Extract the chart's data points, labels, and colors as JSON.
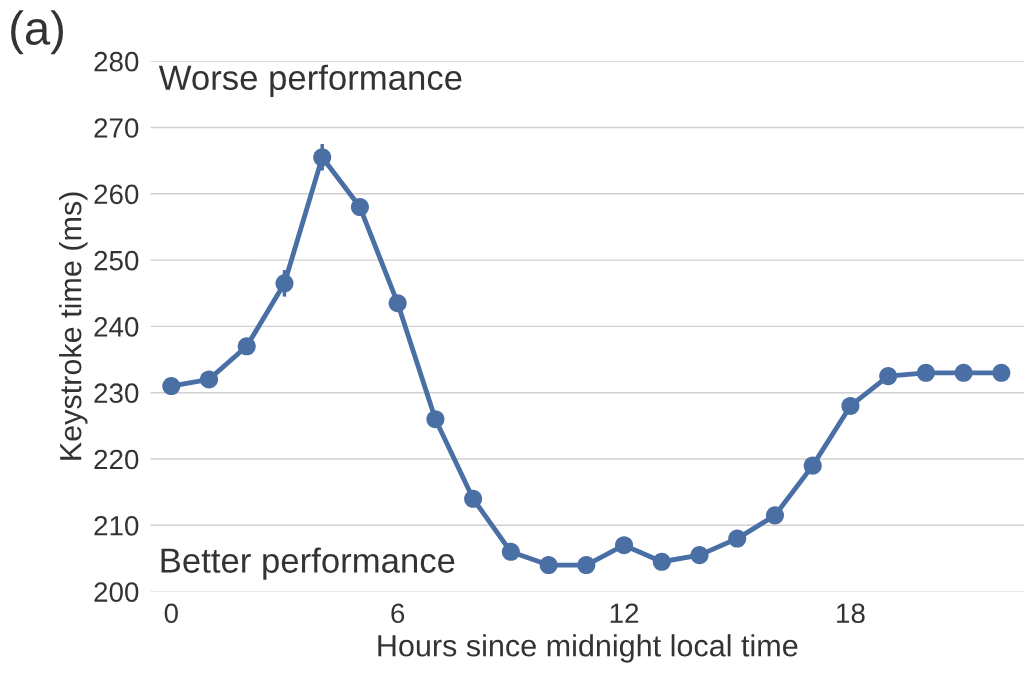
{
  "chart_data": {
    "type": "line",
    "xlabel": "Hours since midnight local time",
    "ylabel": "Keystroke time (ms)",
    "annotations": [
      "(a)",
      "Worse performance",
      "Better performance"
    ],
    "x": [
      0,
      1,
      2,
      3,
      4,
      5,
      6,
      7,
      8,
      9,
      10,
      11,
      12,
      13,
      14,
      15,
      16,
      17,
      18,
      19,
      20,
      21,
      22
    ],
    "series": [
      {
        "color": "#4a6fa5",
        "values": [
          231,
          232,
          237,
          246.5,
          265.5,
          258,
          243.5,
          226,
          214,
          206,
          204,
          204,
          207,
          204.5,
          205.5,
          208,
          211.5,
          219,
          228,
          232.5,
          233,
          233,
          233
        ],
        "errors": [
          null,
          null,
          null,
          2,
          2,
          1,
          null,
          null,
          null,
          null,
          null,
          null,
          null,
          null,
          null,
          null,
          null,
          null,
          null,
          null,
          null,
          null,
          null
        ]
      }
    ],
    "xlim": [
      -0.55,
      22.6
    ],
    "ylim": [
      200,
      280
    ],
    "xticks": [
      0,
      6,
      12,
      18
    ],
    "yticks": [
      200,
      210,
      220,
      230,
      240,
      250,
      260,
      270,
      280
    ],
    "grid": "y",
    "marker": "circle",
    "line_style": "solid"
  }
}
